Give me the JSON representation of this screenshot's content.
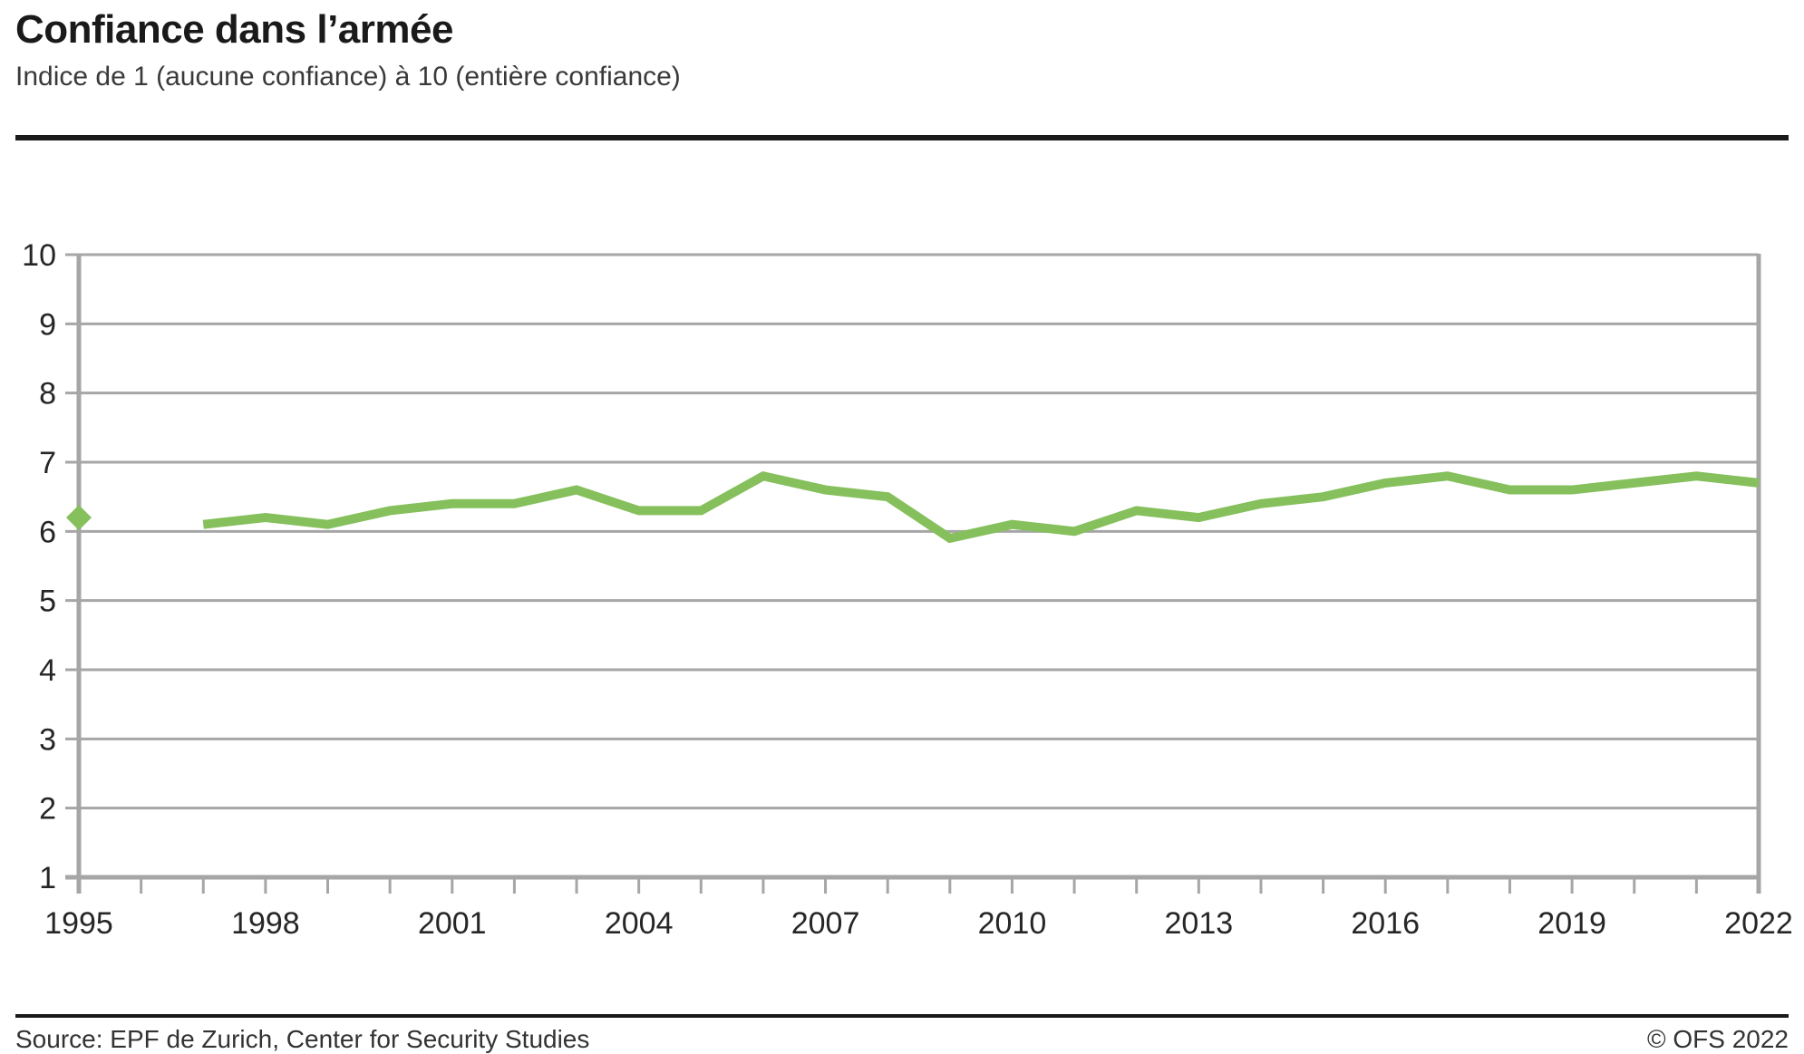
{
  "header": {
    "title": "Confiance dans l’armée",
    "subtitle": "Indice de 1 (aucune confiance) à 10 (entière confiance)"
  },
  "footer": {
    "source": "Source: EPF de Zurich, Center for Security Studies",
    "copyright": "© OFS 2022"
  },
  "colors": {
    "line": "#85C05C",
    "grid": "#A6A6A6",
    "axis": "#A6A6A6",
    "tick_label": "#262626",
    "rule": "#1A1A1A"
  },
  "chart_data": {
    "type": "line",
    "title": "Confiance dans l’armée",
    "subtitle": "Indice de 1 (aucune confiance) à 10 (entière confiance)",
    "xlabel": "",
    "ylabel": "",
    "xlim": [
      1995,
      2022
    ],
    "ylim": [
      1,
      10
    ],
    "grid": "horizontal",
    "legend": "none",
    "y_ticks": [
      1,
      2,
      3,
      4,
      5,
      6,
      7,
      8,
      9,
      10
    ],
    "x_tick_interval": 1,
    "x_labeled_ticks": [
      1995,
      1998,
      2001,
      2004,
      2007,
      2010,
      2013,
      2016,
      2019,
      2022
    ],
    "series": [
      {
        "name": "Confiance dans l’armée",
        "color": "#85C05C",
        "marker_point": {
          "x": 1995,
          "y": 6.2,
          "shape": "diamond"
        },
        "line": [
          {
            "x": 1997,
            "y": 6.1
          },
          {
            "x": 1998,
            "y": 6.2
          },
          {
            "x": 1999,
            "y": 6.1
          },
          {
            "x": 2000,
            "y": 6.3
          },
          {
            "x": 2001,
            "y": 6.4
          },
          {
            "x": 2002,
            "y": 6.4
          },
          {
            "x": 2003,
            "y": 6.6
          },
          {
            "x": 2004,
            "y": 6.3
          },
          {
            "x": 2005,
            "y": 6.3
          },
          {
            "x": 2006,
            "y": 6.8
          },
          {
            "x": 2007,
            "y": 6.6
          },
          {
            "x": 2008,
            "y": 6.5
          },
          {
            "x": 2009,
            "y": 5.9
          },
          {
            "x": 2010,
            "y": 6.1
          },
          {
            "x": 2011,
            "y": 6.0
          },
          {
            "x": 2012,
            "y": 6.3
          },
          {
            "x": 2013,
            "y": 6.2
          },
          {
            "x": 2014,
            "y": 6.4
          },
          {
            "x": 2015,
            "y": 6.5
          },
          {
            "x": 2016,
            "y": 6.7
          },
          {
            "x": 2017,
            "y": 6.8
          },
          {
            "x": 2018,
            "y": 6.6
          },
          {
            "x": 2019,
            "y": 6.6
          },
          {
            "x": 2020,
            "y": 6.7
          },
          {
            "x": 2021,
            "y": 6.8
          },
          {
            "x": 2022,
            "y": 6.7
          }
        ]
      }
    ]
  }
}
